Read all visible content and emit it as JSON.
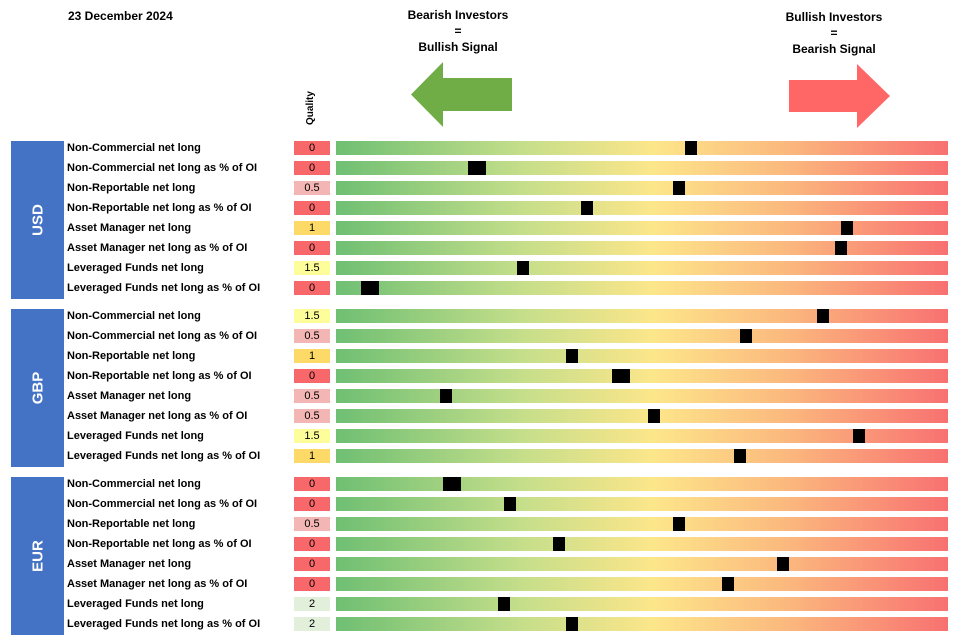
{
  "header": {
    "date": "23 December 2024",
    "quality_label": "Quality",
    "bearish": {
      "line1": "Bearish Investors",
      "line2": "=",
      "line3": "Bullish Signal"
    },
    "bullish": {
      "line1": "Bullish Investors",
      "line2": "=",
      "line3": "Bearish Signal"
    }
  },
  "colors": {
    "group_block": "#4472c4",
    "arrow_green": "#70ad47",
    "arrow_red": "#ff6666",
    "quality_0": "#f8686b",
    "quality_0.5": "#f4b6b4",
    "quality_1": "#fdd967",
    "quality_1.5": "#fdfd99",
    "quality_2": "#e2efda",
    "marker": "#000000"
  },
  "chart_data": {
    "type": "table",
    "marker_scale": [
      0,
      1
    ],
    "groups": [
      {
        "name": "USD",
        "rows": [
          {
            "label": "Non-Commercial net long",
            "quality": "0",
            "position": 0.58
          },
          {
            "label": "Non-Commercial net long as % of OI",
            "quality": "0",
            "position": 0.23
          },
          {
            "label": "Non-Reportable net long",
            "quality": "0.5",
            "position": 0.56
          },
          {
            "label": "Non-Reportable net long as % of OI",
            "quality": "0",
            "position": 0.41
          },
          {
            "label": "Asset Manager net long",
            "quality": "1",
            "position": 0.835
          },
          {
            "label": "Asset Manager net long as % of OI",
            "quality": "0",
            "position": 0.825
          },
          {
            "label": "Leveraged Funds net long",
            "quality": "1.5",
            "position": 0.305
          },
          {
            "label": "Leveraged Funds net long as % of OI",
            "quality": "0",
            "position": 0.055
          }
        ]
      },
      {
        "name": "GBP",
        "rows": [
          {
            "label": "Non-Commercial net long",
            "quality": "1.5",
            "position": 0.795
          },
          {
            "label": "Non-Commercial net long as % of OI",
            "quality": "0.5",
            "position": 0.67
          },
          {
            "label": "Non-Reportable net long",
            "quality": "1",
            "position": 0.385
          },
          {
            "label": "Non-Reportable net long as % of OI",
            "quality": "0",
            "position": 0.465
          },
          {
            "label": "Asset Manager net long",
            "quality": "0.5",
            "position": 0.18
          },
          {
            "label": "Asset Manager net long as % of OI",
            "quality": "0.5",
            "position": 0.52
          },
          {
            "label": "Leveraged Funds net long",
            "quality": "1.5",
            "position": 0.855
          },
          {
            "label": "Leveraged Funds net long as % of OI",
            "quality": "1",
            "position": 0.66
          }
        ]
      },
      {
        "name": "EUR",
        "rows": [
          {
            "label": "Non-Commercial net long",
            "quality": "0",
            "position": 0.19
          },
          {
            "label": "Non-Commercial net long as % of OI",
            "quality": "0",
            "position": 0.285
          },
          {
            "label": "Non-Reportable net long",
            "quality": "0.5",
            "position": 0.56
          },
          {
            "label": "Non-Reportable net long as % of OI",
            "quality": "0",
            "position": 0.365
          },
          {
            "label": "Asset Manager net long",
            "quality": "0",
            "position": 0.73
          },
          {
            "label": "Asset Manager net long as % of OI",
            "quality": "0",
            "position": 0.64
          },
          {
            "label": "Leveraged Funds net long",
            "quality": "2",
            "position": 0.275
          },
          {
            "label": "Leveraged Funds net long as % of OI",
            "quality": "2",
            "position": 0.385
          }
        ]
      }
    ]
  }
}
